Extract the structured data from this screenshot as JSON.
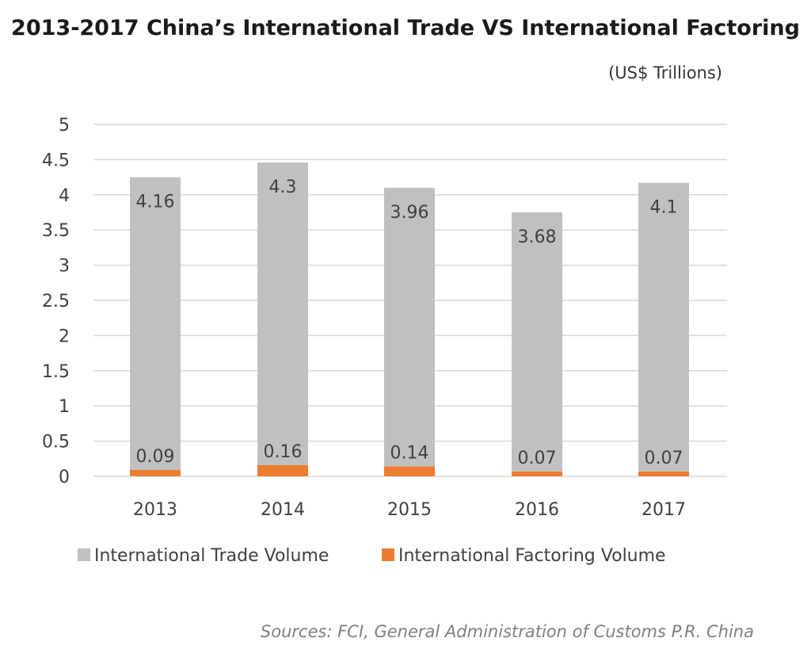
{
  "chart_data": {
    "type": "bar",
    "stacked": true,
    "title": "2013-2017 China’s International Trade VS International Factoring",
    "unit_label": "(US$ Trillions)",
    "categories": [
      "2013",
      "2014",
      "2015",
      "2016",
      "2017"
    ],
    "series": [
      {
        "name": "International Trade Volume",
        "color": "#c0c0c0",
        "values": [
          4.16,
          4.3,
          3.96,
          3.68,
          4.1
        ],
        "labels": [
          "4.16",
          "4.3",
          "3.96",
          "3.68",
          "4.1"
        ]
      },
      {
        "name": "International Factoring Volume",
        "color": "#ed7d31",
        "values": [
          0.09,
          0.16,
          0.14,
          0.07,
          0.07
        ],
        "labels": [
          "0.09",
          "0.16",
          "0.14",
          "0.07",
          "0.07"
        ]
      }
    ],
    "ylim": [
      0,
      5
    ],
    "yticks": [
      "0",
      "0.5",
      "1",
      "1.5",
      "2",
      "2.5",
      "3",
      "3.5",
      "4",
      "4.5",
      "5"
    ],
    "grid": true,
    "legend_position": "bottom",
    "xlabel": "",
    "ylabel": ""
  },
  "source_note": "Sources: FCI, General Administration of Customs P.R. China"
}
